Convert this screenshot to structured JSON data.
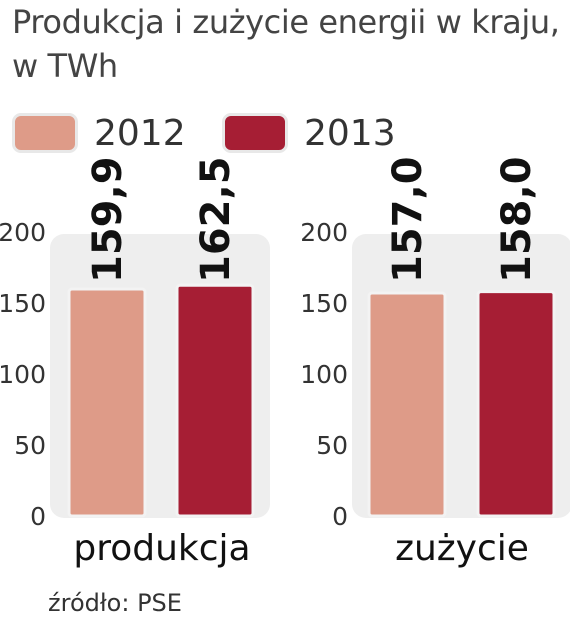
{
  "colors": {
    "y2012": "#de9b88",
    "y2013": "#a61e34",
    "panel": "#eeeeee"
  },
  "chart_data": {
    "type": "bar",
    "title": "Produkcja i zużycie energii w kraju, w TWh",
    "categories": [
      "produkcja",
      "zużycie"
    ],
    "series": [
      {
        "name": "2012",
        "values": [
          159.9,
          157.0
        ],
        "labels": [
          "159,9",
          "157,0"
        ]
      },
      {
        "name": "2013",
        "values": [
          162.5,
          158.0
        ],
        "labels": [
          "162,5",
          "158,0"
        ]
      }
    ],
    "yticks": [
      0,
      50,
      100,
      150,
      200
    ],
    "ylim": [
      0,
      200
    ],
    "legend_position": "top-left",
    "source": "źródło: PSE"
  }
}
